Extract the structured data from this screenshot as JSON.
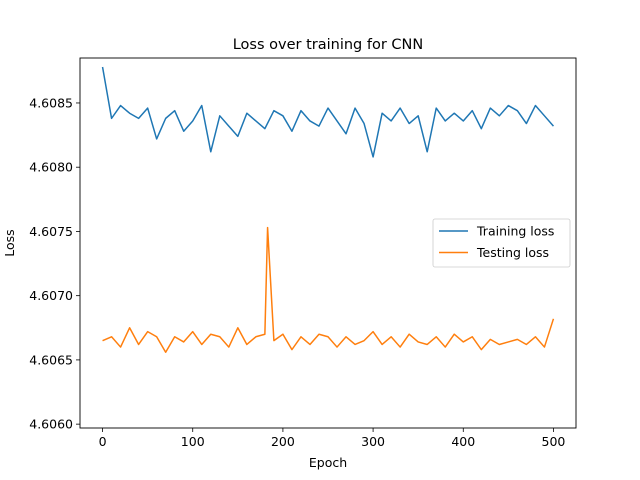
{
  "chart_data": {
    "type": "line",
    "title": "Loss over training for CNN",
    "xlabel": "Epoch",
    "ylabel": "Loss",
    "xlim": [
      -25,
      525
    ],
    "ylim": [
      4.60597,
      4.60885
    ],
    "xticks": [
      0,
      100,
      200,
      300,
      400,
      500
    ],
    "yticks": [
      4.606,
      4.6065,
      4.607,
      4.6075,
      4.608,
      4.6085
    ],
    "ytick_labels": [
      "4.6060",
      "4.6065",
      "4.6070",
      "4.6075",
      "4.6080",
      "4.6085"
    ],
    "grid": false,
    "legend_position": "center-right",
    "series": [
      {
        "name": "Training loss",
        "color": "#1f77b4",
        "x": [
          0,
          10,
          20,
          30,
          40,
          50,
          60,
          70,
          80,
          90,
          100,
          110,
          120,
          130,
          140,
          150,
          160,
          170,
          180,
          190,
          200,
          210,
          220,
          230,
          240,
          250,
          260,
          270,
          280,
          290,
          300,
          310,
          320,
          330,
          340,
          350,
          360,
          370,
          380,
          390,
          400,
          410,
          420,
          430,
          440,
          450,
          460,
          470,
          480,
          490,
          500
        ],
        "y": [
          4.60878,
          4.60838,
          4.60848,
          4.60842,
          4.60838,
          4.60846,
          4.60822,
          4.60838,
          4.60844,
          4.60828,
          4.60836,
          4.60848,
          4.60812,
          4.6084,
          4.60832,
          4.60824,
          4.60842,
          4.60836,
          4.6083,
          4.60844,
          4.6084,
          4.60828,
          4.60844,
          4.60836,
          4.60832,
          4.60846,
          4.60836,
          4.60826,
          4.60846,
          4.60834,
          4.60808,
          4.60842,
          4.60836,
          4.60846,
          4.60834,
          4.6084,
          4.60812,
          4.60846,
          4.60836,
          4.60842,
          4.60836,
          4.60844,
          4.6083,
          4.60846,
          4.6084,
          4.60848,
          4.60844,
          4.60834,
          4.60848,
          4.6084,
          4.60832
        ]
      },
      {
        "name": "Testing loss",
        "color": "#ff7f0e",
        "x": [
          0,
          10,
          20,
          30,
          40,
          50,
          60,
          70,
          80,
          90,
          100,
          110,
          120,
          130,
          140,
          150,
          160,
          170,
          180,
          183,
          190,
          200,
          210,
          220,
          230,
          240,
          250,
          260,
          270,
          280,
          290,
          300,
          310,
          320,
          330,
          340,
          350,
          360,
          370,
          380,
          390,
          400,
          410,
          420,
          430,
          440,
          450,
          460,
          470,
          480,
          490,
          500
        ],
        "y": [
          4.60665,
          4.60668,
          4.6066,
          4.60675,
          4.60662,
          4.60672,
          4.60668,
          4.60656,
          4.60668,
          4.60664,
          4.60672,
          4.60662,
          4.6067,
          4.60668,
          4.6066,
          4.60675,
          4.60662,
          4.60668,
          4.6067,
          4.60753,
          4.60665,
          4.6067,
          4.60658,
          4.60668,
          4.60662,
          4.6067,
          4.60668,
          4.6066,
          4.60668,
          4.60662,
          4.60665,
          4.60672,
          4.60662,
          4.60668,
          4.6066,
          4.6067,
          4.60664,
          4.60662,
          4.60668,
          4.6066,
          4.6067,
          4.60664,
          4.60668,
          4.60658,
          4.60666,
          4.60662,
          4.60664,
          4.60666,
          4.60662,
          4.60668,
          4.6066,
          4.60682
        ]
      }
    ]
  }
}
